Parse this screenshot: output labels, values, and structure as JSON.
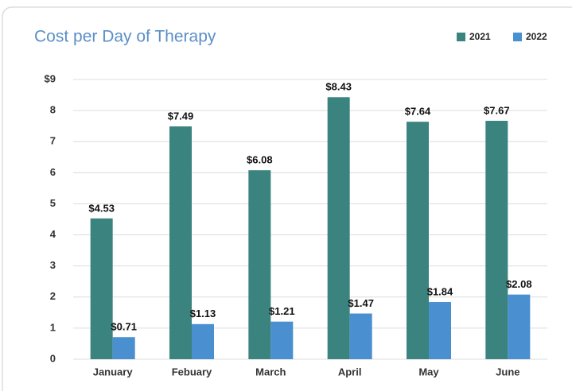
{
  "chart_data": {
    "type": "bar",
    "title": "Cost per Day of Therapy",
    "categories": [
      "January",
      "Febuary",
      "March",
      "April",
      "May",
      "June"
    ],
    "series": [
      {
        "name": "2021",
        "color": "#3a837e",
        "values": [
          4.53,
          7.49,
          6.08,
          8.43,
          7.64,
          7.67
        ],
        "value_labels": [
          "$4.53",
          "$7.49",
          "$6.08",
          "$8.43",
          "$7.64",
          "$7.67"
        ]
      },
      {
        "name": "2022",
        "color": "#4a8fd0",
        "values": [
          0.71,
          1.13,
          1.21,
          1.47,
          1.84,
          2.08
        ],
        "value_labels": [
          "$0.71",
          "$1.13",
          "$1.21",
          "$1.47",
          "$1.84",
          "$2.08"
        ]
      }
    ],
    "ylim": [
      0,
      9
    ],
    "yticks": [
      0,
      1,
      2,
      3,
      4,
      5,
      6,
      7,
      8,
      {
        "value": 9,
        "label": "$9"
      }
    ],
    "grid": true,
    "legend": "top-right"
  }
}
